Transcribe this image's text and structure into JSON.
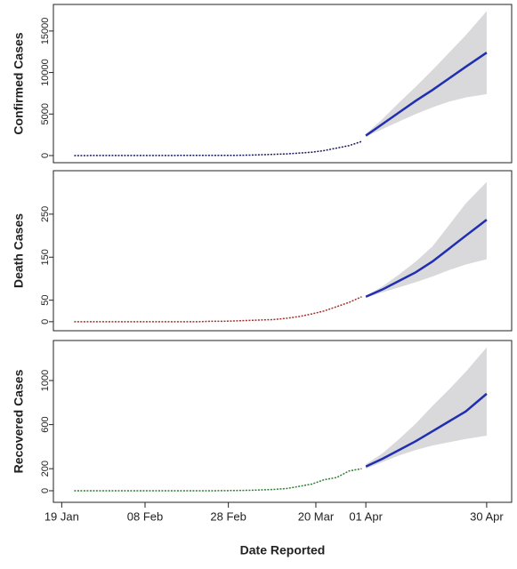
{
  "chart_data": [
    {
      "type": "line",
      "ylabel": "Confirmed Cases",
      "xlim": [
        17,
        127
      ],
      "ylim": [
        -860,
        18200
      ],
      "yticks": [
        0,
        5000,
        10000,
        15000
      ],
      "observed": {
        "color": "#1a1a5e",
        "x": [
          22,
          25,
          28,
          31,
          34,
          37,
          40,
          43,
          46,
          49,
          52,
          55,
          58,
          61,
          64,
          67,
          70,
          73,
          76,
          79,
          82,
          85,
          88,
          91
        ],
        "values": [
          1,
          3,
          5,
          8,
          10,
          12,
          14,
          15,
          16,
          18,
          20,
          22,
          25,
          30,
          50,
          100,
          150,
          200,
          300,
          400,
          600,
          900,
          1200,
          1700
        ]
      },
      "forecast": {
        "color": "#1f2fb0",
        "band_color": "#d9d9dc",
        "x": [
          92,
          96,
          100,
          104,
          108,
          112,
          116,
          121
        ],
        "values": [
          2400,
          3800,
          5200,
          6600,
          7900,
          9300,
          10700,
          12400
        ],
        "lower": [
          2300,
          3200,
          4100,
          5000,
          5800,
          6500,
          7000,
          7400
        ],
        "upper": [
          2600,
          4400,
          6400,
          8300,
          10300,
          12400,
          14500,
          17400
        ]
      }
    },
    {
      "type": "line",
      "ylabel": "Death Cases",
      "xlim": [
        17,
        127
      ],
      "ylim": [
        -21,
        351
      ],
      "yticks": [
        0,
        50,
        150,
        250
      ],
      "observed": {
        "color": "#a0302a",
        "x": [
          22,
          25,
          28,
          31,
          34,
          37,
          40,
          43,
          46,
          49,
          52,
          55,
          58,
          61,
          64,
          67,
          70,
          73,
          76,
          79,
          82,
          85,
          88,
          91
        ],
        "values": [
          0,
          0,
          0,
          0,
          0,
          0,
          0,
          0,
          0,
          0,
          0,
          1,
          1,
          2,
          3,
          4,
          5,
          8,
          12,
          18,
          25,
          35,
          45,
          58
        ]
      },
      "forecast": {
        "color": "#1f2fb0",
        "band_color": "#d9d9dc",
        "x": [
          92,
          96,
          100,
          104,
          108,
          112,
          116,
          121
        ],
        "values": [
          58,
          75,
          95,
          115,
          140,
          170,
          200,
          237
        ],
        "lower": [
          56,
          68,
          80,
          92,
          105,
          120,
          133,
          145
        ],
        "upper": [
          60,
          82,
          110,
          140,
          175,
          225,
          275,
          325
        ]
      }
    },
    {
      "type": "line",
      "ylabel": "Recovered Cases",
      "xlabel": "Date Reported",
      "xlim": [
        17,
        127
      ],
      "ylim": [
        -105,
        1363
      ],
      "yticks": [
        0,
        200,
        600,
        1000
      ],
      "xticks": [
        {
          "value": 19,
          "label": "19 Jan"
        },
        {
          "value": 39,
          "label": "08 Feb"
        },
        {
          "value": 59,
          "label": "28 Feb"
        },
        {
          "value": 80,
          "label": "20 Mar"
        },
        {
          "value": 92,
          "label": "01 Apr"
        },
        {
          "value": 121,
          "label": "30 Apr"
        }
      ],
      "observed": {
        "color": "#2e7d32",
        "x": [
          22,
          25,
          28,
          31,
          34,
          37,
          40,
          43,
          46,
          49,
          52,
          55,
          58,
          61,
          64,
          67,
          70,
          73,
          76,
          79,
          82,
          85,
          88,
          91
        ],
        "values": [
          0,
          0,
          0,
          0,
          0,
          0,
          0,
          0,
          0,
          0,
          0,
          0,
          1,
          2,
          4,
          8,
          12,
          20,
          40,
          60,
          100,
          120,
          180,
          200
        ]
      },
      "forecast": {
        "color": "#1f2fb0",
        "band_color": "#d9d9dc",
        "x": [
          92,
          96,
          100,
          104,
          108,
          112,
          116,
          121
        ],
        "values": [
          220,
          290,
          370,
          450,
          540,
          630,
          720,
          880
        ],
        "lower": [
          200,
          260,
          320,
          370,
          410,
          440,
          470,
          500
        ],
        "upper": [
          240,
          340,
          470,
          610,
          770,
          920,
          1080,
          1300
        ]
      }
    }
  ]
}
